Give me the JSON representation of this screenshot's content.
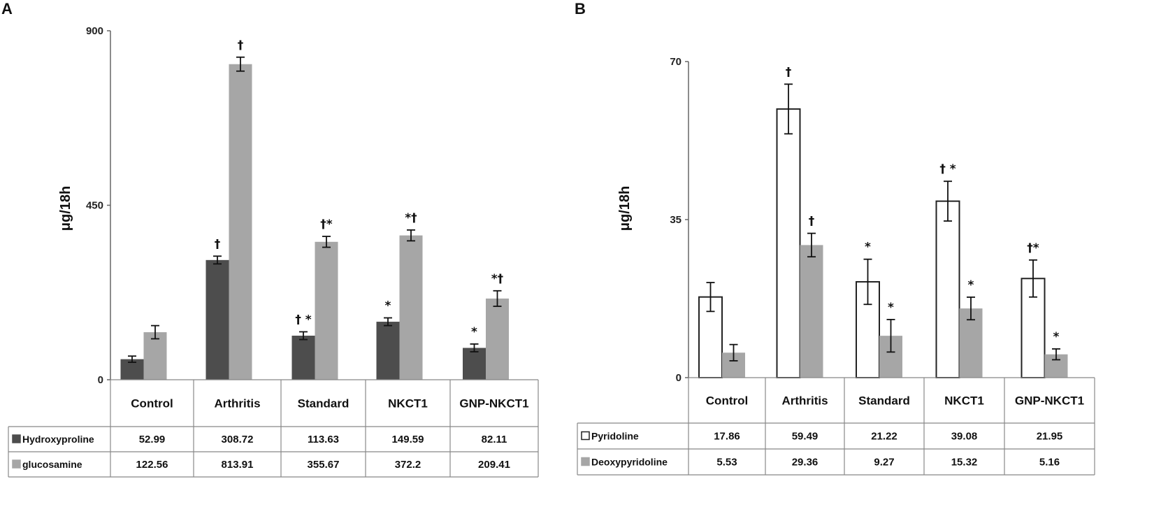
{
  "chart_data": [
    {
      "panel": "A",
      "type": "bar",
      "title": "",
      "ylabel": "μg/18h",
      "xlabel": "",
      "ylim": [
        0,
        900
      ],
      "yticks": [
        "0",
        "450",
        "900"
      ],
      "ytick_values": [
        0,
        450,
        900
      ],
      "grid": false,
      "categories": [
        "Control",
        "Arthritis",
        "Standard",
        "NKCT1",
        "GNP-NKCT1"
      ],
      "series": [
        {
          "name": "Hydroxyproline",
          "color": "#4d4d4d",
          "values": [
            52.99,
            308.72,
            113.63,
            149.59,
            82.11
          ],
          "labels": [
            "52.99",
            "308.72",
            "113.63",
            "149.59",
            "82.11"
          ],
          "errors": [
            8,
            10,
            10,
            10,
            10
          ],
          "annotations": [
            "",
            "†",
            "† *",
            "*",
            "*"
          ]
        },
        {
          "name": "glucosamine",
          "color": "#a6a6a6",
          "values": [
            122.56,
            813.91,
            355.67,
            372.2,
            209.41
          ],
          "labels": [
            "122.56",
            "813.91",
            "355.67",
            "372.2",
            "209.41"
          ],
          "errors": [
            17,
            18,
            14,
            14,
            20
          ],
          "annotations": [
            "",
            "†",
            "†*",
            "*†",
            "*†"
          ]
        }
      ]
    },
    {
      "panel": "B",
      "type": "bar",
      "title": "",
      "ylabel": "μg/18h",
      "xlabel": "",
      "ylim": [
        0,
        70
      ],
      "yticks": [
        "0",
        "35",
        "70"
      ],
      "ytick_values": [
        0,
        35,
        70
      ],
      "grid": false,
      "categories": [
        "Control",
        "Arthritis",
        "Standard",
        "NKCT1",
        "GNP-NKCT1"
      ],
      "series": [
        {
          "name": "Pyridoline",
          "color": "#ffffff",
          "outline": "#222222",
          "values": [
            17.86,
            59.49,
            21.22,
            39.08,
            21.95
          ],
          "labels": [
            "17.86",
            "59.49",
            "21.22",
            "39.08",
            "21.95"
          ],
          "errors": [
            3.2,
            5.5,
            5.0,
            4.4,
            4.1
          ],
          "annotations": [
            "",
            "†",
            "*",
            "† *",
            "†*"
          ]
        },
        {
          "name": "Deoxypyridoline",
          "color": "#a6a6a6",
          "values": [
            5.53,
            29.36,
            9.27,
            15.32,
            5.16
          ],
          "labels": [
            "5.53",
            "29.36",
            "9.27",
            "15.32",
            "5.16"
          ],
          "errors": [
            1.8,
            2.6,
            3.6,
            2.5,
            1.2
          ],
          "annotations": [
            "",
            "†",
            "*",
            "*",
            "*"
          ]
        }
      ]
    }
  ]
}
